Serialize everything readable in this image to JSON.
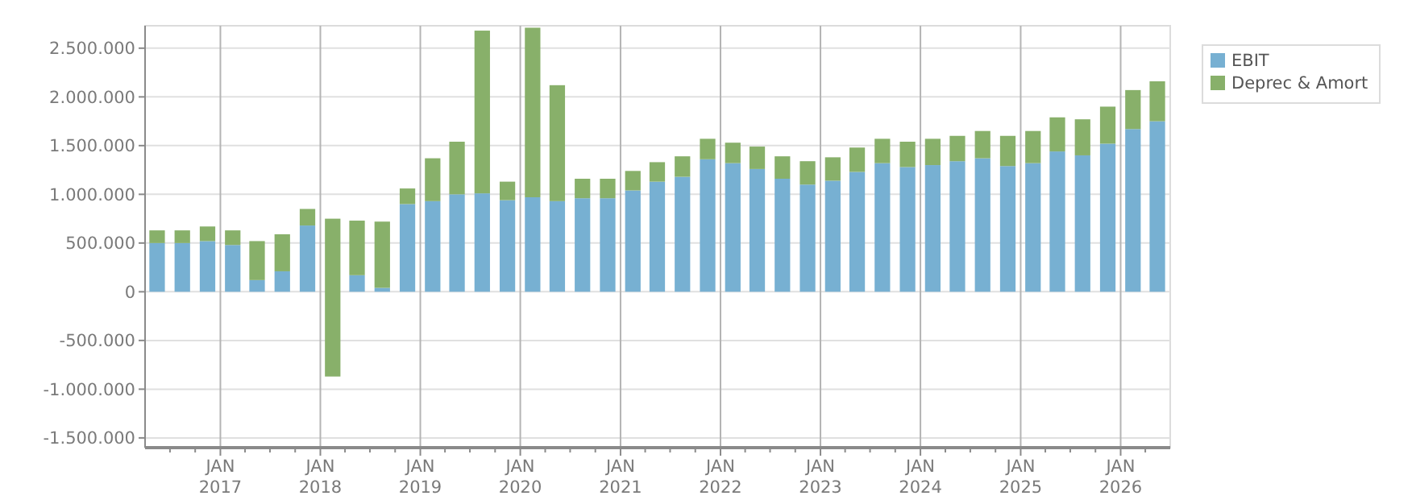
{
  "chart_data": {
    "type": "bar",
    "stacked": true,
    "x": [
      "2016-05-15",
      "2016-08-15",
      "2016-11-15",
      "2017-02-15",
      "2017-05-15",
      "2017-08-15",
      "2017-11-15",
      "2018-02-15",
      "2018-05-15",
      "2018-08-15",
      "2018-11-15",
      "2019-02-15",
      "2019-05-15",
      "2019-08-15",
      "2019-11-15",
      "2020-02-15",
      "2020-05-15",
      "2020-08-15",
      "2020-11-15",
      "2021-02-15",
      "2021-05-15",
      "2021-08-15",
      "2021-11-15",
      "2022-02-15",
      "2022-05-15",
      "2022-08-15",
      "2022-11-15",
      "2023-02-15",
      "2023-05-15",
      "2023-08-15",
      "2023-11-15",
      "2024-02-15",
      "2024-05-15",
      "2024-08-15",
      "2024-11-15",
      "2025-02-15",
      "2025-05-15",
      "2025-08-15",
      "2025-11-15",
      "2026-02-15",
      "2026-05-15"
    ],
    "series": [
      {
        "name": "EBIT",
        "color": "#77b0d2",
        "values": [
          500000,
          500000,
          520000,
          480000,
          120000,
          210000,
          680000,
          null,
          170000,
          40000,
          900000,
          930000,
          1000000,
          1010000,
          940000,
          970000,
          930000,
          960000,
          960000,
          1040000,
          1130000,
          1180000,
          1360000,
          1320000,
          1260000,
          1160000,
          1100000,
          1140000,
          1230000,
          1320000,
          1280000,
          1300000,
          1340000,
          1370000,
          1290000,
          1320000,
          1440000,
          1400000,
          1520000,
          1670000,
          1750000
        ]
      },
      {
        "name": "Deprec & Amort",
        "color": "#88b06a",
        "values": [
          130000,
          130000,
          150000,
          150000,
          400000,
          380000,
          170000,
          1620000,
          560000,
          680000,
          160000,
          440000,
          540000,
          1670000,
          190000,
          1740000,
          1190000,
          200000,
          200000,
          200000,
          200000,
          210000,
          210000,
          210000,
          230000,
          230000,
          240000,
          240000,
          250000,
          250000,
          260000,
          270000,
          260000,
          280000,
          310000,
          330000,
          350000,
          370000,
          380000,
          400000,
          410000
        ],
        "base": [
          null,
          null,
          null,
          null,
          null,
          null,
          null,
          -870000,
          null,
          null,
          null,
          null,
          null,
          null,
          null,
          null,
          null,
          null,
          null,
          null,
          null,
          null,
          null,
          null,
          null,
          null,
          null,
          null,
          null,
          null,
          null,
          null,
          null,
          null,
          null,
          null,
          null,
          null,
          null,
          null,
          null
        ]
      }
    ],
    "xlim": [
      "2016-04-01",
      "2026-07-01"
    ],
    "xticks": [
      {
        "value": "2016-07-01",
        "label": null
      },
      {
        "value": "2016-10-01",
        "label": null
      },
      {
        "value": "2017-01-01",
        "label": "JAN\n2017"
      },
      {
        "value": "2017-04-01",
        "label": null
      },
      {
        "value": "2017-07-01",
        "label": null
      },
      {
        "value": "2017-10-01",
        "label": null
      },
      {
        "value": "2018-01-01",
        "label": "JAN\n2018"
      },
      {
        "value": "2018-04-01",
        "label": null
      },
      {
        "value": "2018-07-01",
        "label": null
      },
      {
        "value": "2018-10-01",
        "label": null
      },
      {
        "value": "2019-01-01",
        "label": "JAN\n2019"
      },
      {
        "value": "2019-04-01",
        "label": null
      },
      {
        "value": "2019-07-01",
        "label": null
      },
      {
        "value": "2019-10-01",
        "label": null
      },
      {
        "value": "2020-01-01",
        "label": "JAN\n2020"
      },
      {
        "value": "2020-04-01",
        "label": null
      },
      {
        "value": "2020-07-01",
        "label": null
      },
      {
        "value": "2020-10-01",
        "label": null
      },
      {
        "value": "2021-01-01",
        "label": "JAN\n2021"
      },
      {
        "value": "2021-04-01",
        "label": null
      },
      {
        "value": "2021-07-01",
        "label": null
      },
      {
        "value": "2021-10-01",
        "label": null
      },
      {
        "value": "2022-01-01",
        "label": "JAN\n2022"
      },
      {
        "value": "2022-04-01",
        "label": null
      },
      {
        "value": "2022-07-01",
        "label": null
      },
      {
        "value": "2022-10-01",
        "label": null
      },
      {
        "value": "2023-01-01",
        "label": "JAN\n2023"
      },
      {
        "value": "2023-04-01",
        "label": null
      },
      {
        "value": "2023-07-01",
        "label": null
      },
      {
        "value": "2023-10-01",
        "label": null
      },
      {
        "value": "2024-01-01",
        "label": "JAN\n2024"
      },
      {
        "value": "2024-04-01",
        "label": null
      },
      {
        "value": "2024-07-01",
        "label": null
      },
      {
        "value": "2024-10-01",
        "label": null
      },
      {
        "value": "2025-01-01",
        "label": "JAN\n2025"
      },
      {
        "value": "2025-04-01",
        "label": null
      },
      {
        "value": "2025-07-01",
        "label": null
      },
      {
        "value": "2025-10-01",
        "label": null
      },
      {
        "value": "2026-01-01",
        "label": "JAN\n2026"
      },
      {
        "value": "2026-04-01",
        "label": null
      }
    ],
    "ylim": [
      -1600000,
      2730000
    ],
    "yticks": [
      {
        "value": -1500000,
        "label": "-1.500.000"
      },
      {
        "value": -1000000,
        "label": "-1.000.000"
      },
      {
        "value": -500000,
        "label": "-500.000"
      },
      0,
      {
        "value": 500000,
        "label": "500.000"
      },
      {
        "value": 1000000,
        "label": "1.000.000"
      },
      {
        "value": 1500000,
        "label": "1.500.000"
      },
      {
        "value": 2000000,
        "label": "2.000.000"
      },
      {
        "value": 2500000,
        "label": "2.500.000"
      }
    ],
    "grid": true,
    "legend": "top right"
  }
}
